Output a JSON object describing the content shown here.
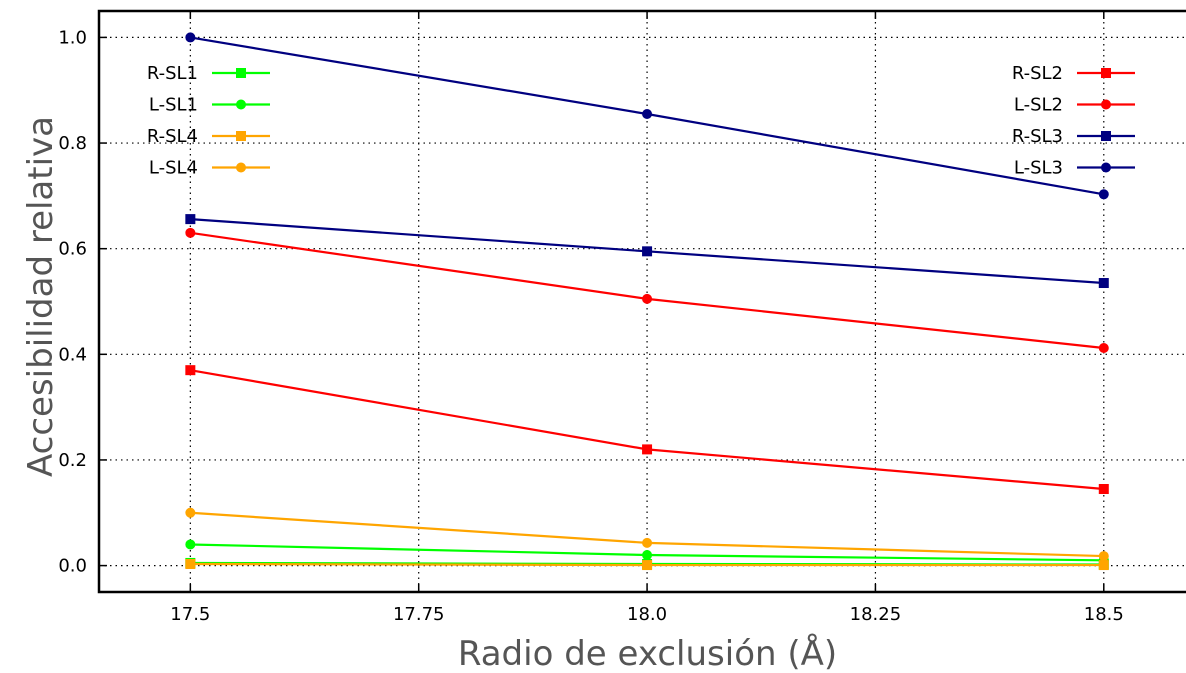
{
  "chart_data": {
    "type": "line",
    "xlabel": "Radio de exclusión (Å)",
    "ylabel": "Accesibilidad relativa",
    "x": [
      17.5,
      18.0,
      18.5
    ],
    "xlim": [
      17.4,
      18.59
    ],
    "ylim": [
      -0.05,
      1.05
    ],
    "xticks": [
      17.5,
      17.75,
      18.0,
      18.25,
      18.5
    ],
    "xtick_labels": [
      "17.5",
      "17.75",
      "18.0",
      "18.25",
      "18.5"
    ],
    "yticks": [
      0.0,
      0.2,
      0.4,
      0.6,
      0.8,
      1.0
    ],
    "ytick_labels": [
      "0.0",
      "0.2",
      "0.4",
      "0.6",
      "0.8",
      "1.0"
    ],
    "grid": true,
    "series": [
      {
        "name": "R-SL1",
        "color": "#00ff00",
        "marker": "square",
        "values": [
          0.005,
          0.003,
          0.002
        ]
      },
      {
        "name": "L-SL1",
        "color": "#00ff00",
        "marker": "circle",
        "values": [
          0.04,
          0.02,
          0.01
        ]
      },
      {
        "name": "R-SL4",
        "color": "#ffa500",
        "marker": "square",
        "values": [
          0.003,
          0.001,
          0.001
        ]
      },
      {
        "name": "L-SL4",
        "color": "#ffa500",
        "marker": "circle",
        "values": [
          0.1,
          0.043,
          0.018
        ]
      },
      {
        "name": "R-SL2",
        "color": "#ff0000",
        "marker": "square",
        "values": [
          0.37,
          0.22,
          0.145
        ]
      },
      {
        "name": "L-SL2",
        "color": "#ff0000",
        "marker": "circle",
        "values": [
          0.63,
          0.505,
          0.412
        ]
      },
      {
        "name": "R-SL3",
        "color": "#000080",
        "marker": "square",
        "values": [
          0.656,
          0.595,
          0.535
        ]
      },
      {
        "name": "L-SL3",
        "color": "#000080",
        "marker": "circle",
        "values": [
          1.0,
          0.855,
          0.703
        ]
      }
    ],
    "legends": [
      {
        "placement": "top-left",
        "entries": [
          "R-SL1",
          "L-SL1",
          "R-SL4",
          "L-SL4"
        ]
      },
      {
        "placement": "top-right",
        "entries": [
          "R-SL2",
          "L-SL2",
          "R-SL3",
          "L-SL3"
        ]
      }
    ]
  }
}
